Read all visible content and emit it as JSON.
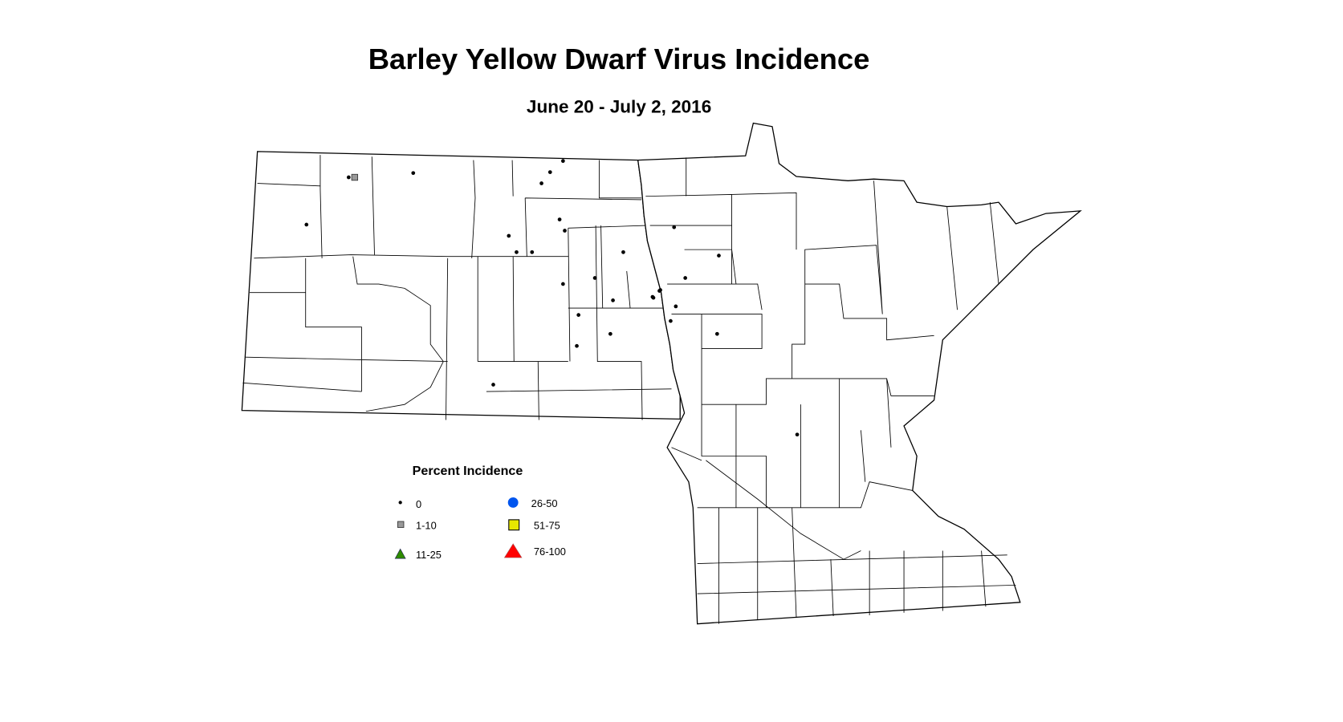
{
  "title": "Barley Yellow Dwarf Virus Incidence",
  "subtitle": "June 20 - July 2, 2016",
  "legend": {
    "title": "Percent Incidence",
    "items": [
      {
        "label": "0",
        "symbol": "small-dot",
        "color": "#000000"
      },
      {
        "label": "1-10",
        "symbol": "square",
        "color": "#999999"
      },
      {
        "label": "11-25",
        "symbol": "triangle",
        "color": "#2e8b00"
      },
      {
        "label": "26-50",
        "symbol": "circle",
        "color": "#0055ee"
      },
      {
        "label": "51-75",
        "symbol": "square",
        "color": "#e8e800"
      },
      {
        "label": "76-100",
        "symbol": "triangle",
        "color": "#ff0000"
      }
    ]
  },
  "observations": {
    "0": 30,
    "1-10": 1,
    "11-25": 0,
    "26-50": 0,
    "51-75": 0,
    "76-100": 0
  }
}
